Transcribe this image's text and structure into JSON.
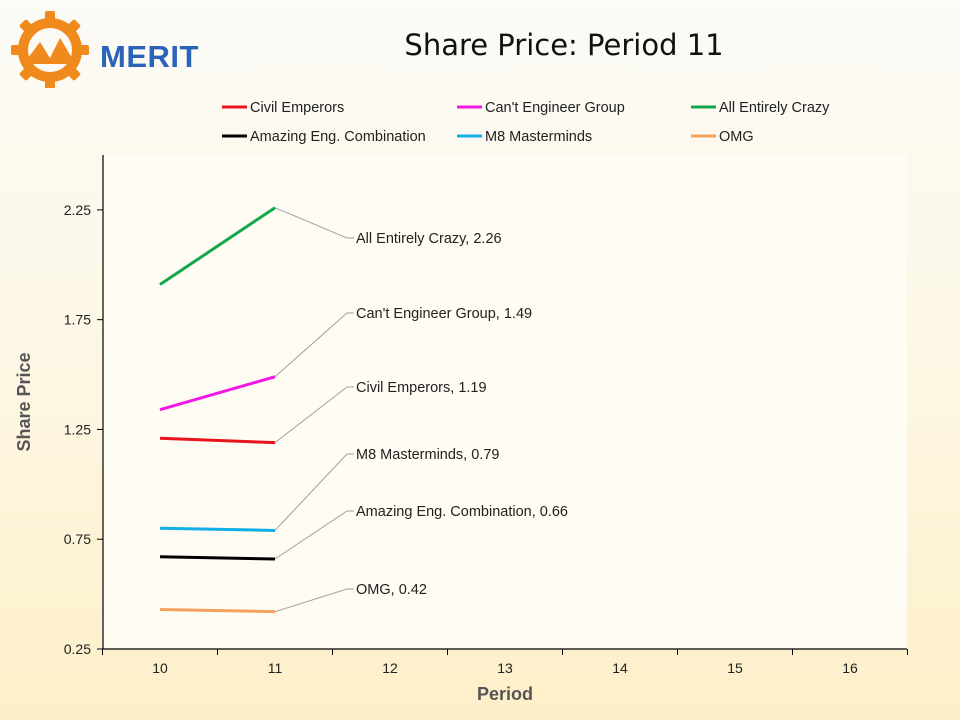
{
  "brand": {
    "name": "MERIT"
  },
  "colors": {
    "brand_blue": "#2a63b8",
    "brand_orange": "#f08a1c",
    "plot_bg": "#fffcf3"
  },
  "chart_data": {
    "type": "line",
    "title": "Share Price: Period 11",
    "xlabel": "Period",
    "ylabel": "Share Price",
    "xlim": [
      9.5,
      16.5
    ],
    "ylim": [
      0.25,
      2.5
    ],
    "x_ticks": [
      10,
      11,
      12,
      13,
      14,
      15,
      16
    ],
    "y_ticks": [
      0.25,
      0.75,
      1.25,
      1.75,
      2.25
    ],
    "y_tick_labels": [
      "0.25",
      "0.75",
      "1.25",
      "1.75",
      "2.25"
    ],
    "grid": false,
    "legend_position": "top",
    "series": [
      {
        "name": "Civil Emperors",
        "color": "#e8141b",
        "x": [
          10,
          11
        ],
        "values": [
          1.21,
          1.19
        ],
        "label": "Civil Emperors, 1.19"
      },
      {
        "name": "Can't Engineer Group",
        "color": "#f019e6",
        "x": [
          10,
          11
        ],
        "values": [
          1.34,
          1.49
        ],
        "label": "Can't Engineer Group,  1.49"
      },
      {
        "name": "All Entirely Crazy",
        "color": "#12a84a",
        "x": [
          10,
          11
        ],
        "values": [
          1.91,
          2.26
        ],
        "label": "All Entirely Crazy, 2.26"
      },
      {
        "name": "Amazing Eng. Combination",
        "color": "#000000",
        "x": [
          10,
          11
        ],
        "values": [
          0.67,
          0.66
        ],
        "label": "Amazing Eng. Combination, 0.66"
      },
      {
        "name": "M8 Masterminds",
        "color": "#12aee6",
        "x": [
          10,
          11
        ],
        "values": [
          0.8,
          0.79
        ],
        "label": "M8 Masterminds, 0.79"
      },
      {
        "name": "OMG",
        "color": "#f5a060",
        "x": [
          10,
          11
        ],
        "values": [
          0.43,
          0.42
        ],
        "label": "OMG, 0.42"
      }
    ]
  }
}
